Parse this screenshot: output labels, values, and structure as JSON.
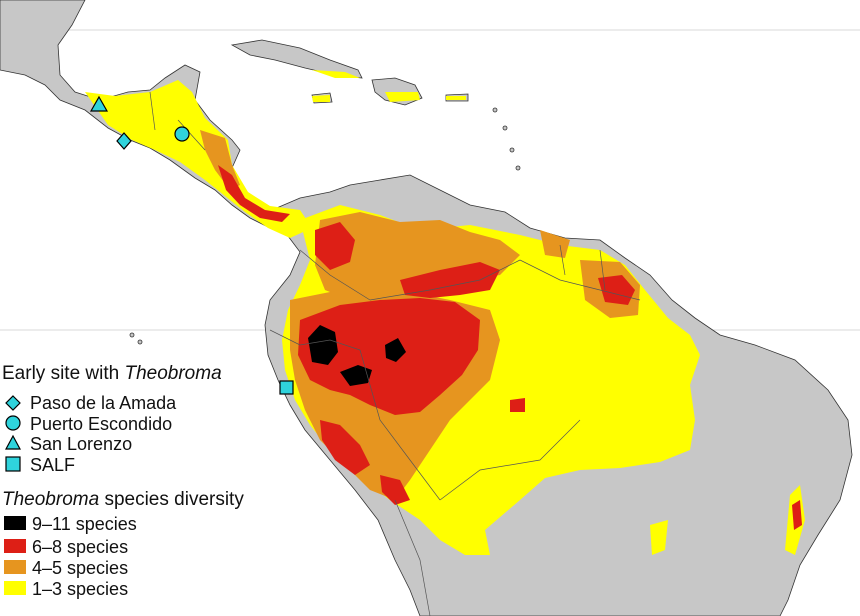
{
  "legend": {
    "sites_title_prefix": "Early site with ",
    "sites_title_genus": "Theobroma",
    "sites": [
      {
        "label": "Paso de la Amada",
        "symbol": "diamond"
      },
      {
        "label": "Puerto Escondido",
        "symbol": "circle"
      },
      {
        "label": "San Lorenzo",
        "symbol": "triangle"
      },
      {
        "label": "SALF",
        "symbol": "square"
      }
    ],
    "diversity_title_genus": "Theobroma",
    "diversity_title_suffix": " species diversity",
    "classes": [
      {
        "label": "9–11 species",
        "color": "#000000"
      },
      {
        "label": "6–8 species",
        "color": "#dd1f16"
      },
      {
        "label": "4–5 species",
        "color": "#e6951f"
      },
      {
        "label": "1–3 species",
        "color": "#ffff00"
      }
    ]
  },
  "colors": {
    "ocean": "#ffffff",
    "land": "#c7c7c7",
    "marker_fill": "#2fd3dc",
    "border": "#555555"
  }
}
